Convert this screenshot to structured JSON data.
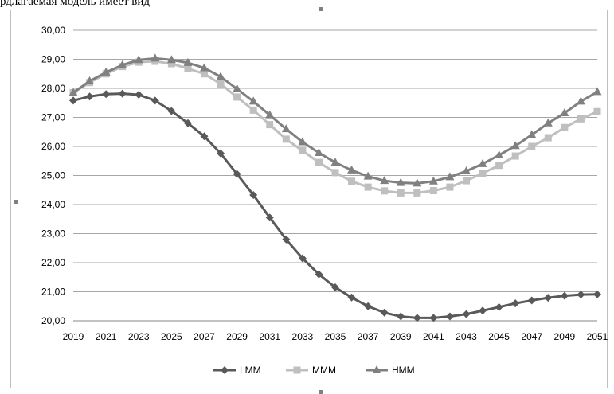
{
  "header_text": "рдлагаемая модель имеет вид",
  "chart_data": {
    "type": "line",
    "title": "",
    "xlabel": "",
    "ylabel": "",
    "ylim": [
      20,
      30
    ],
    "y_ticks": [
      "20,00",
      "21,00",
      "22,00",
      "23,00",
      "24,00",
      "25,00",
      "26,00",
      "27,00",
      "28,00",
      "29,00",
      "30,00"
    ],
    "x_ticks": [
      "2019",
      "2021",
      "2023",
      "2025",
      "2027",
      "2029",
      "2031",
      "2033",
      "2035",
      "2037",
      "2039",
      "2041",
      "2043",
      "2045",
      "2047",
      "2049",
      "2051"
    ],
    "x": [
      2019,
      2020,
      2021,
      2022,
      2023,
      2024,
      2025,
      2026,
      2027,
      2028,
      2029,
      2030,
      2031,
      2032,
      2033,
      2034,
      2035,
      2036,
      2037,
      2038,
      2039,
      2040,
      2041,
      2042,
      2043,
      2044,
      2045,
      2046,
      2047,
      2048,
      2049,
      2050,
      2051
    ],
    "grid": true,
    "legend_position": "bottom",
    "series": [
      {
        "name": "LMM",
        "color": "#595959",
        "marker": "diamond",
        "values": [
          27.58,
          27.72,
          27.8,
          27.82,
          27.78,
          27.58,
          27.22,
          26.8,
          26.35,
          25.76,
          25.05,
          24.33,
          23.55,
          22.8,
          22.15,
          21.6,
          21.15,
          20.8,
          20.5,
          20.28,
          20.15,
          20.1,
          20.1,
          20.15,
          20.23,
          20.35,
          20.47,
          20.6,
          20.7,
          20.79,
          20.86,
          20.9,
          20.91
        ]
      },
      {
        "name": "MMM",
        "color": "#bfbfbf",
        "marker": "square",
        "values": [
          27.85,
          28.2,
          28.5,
          28.75,
          28.9,
          28.93,
          28.85,
          28.68,
          28.5,
          28.15,
          27.7,
          27.25,
          26.75,
          26.25,
          25.85,
          25.45,
          25.1,
          24.8,
          24.6,
          24.47,
          24.4,
          24.4,
          24.48,
          24.6,
          24.82,
          25.08,
          25.35,
          25.67,
          26.0,
          26.3,
          26.65,
          26.95,
          27.2
        ]
      },
      {
        "name": "HMM",
        "color": "#808080",
        "marker": "triangle",
        "values": [
          27.85,
          28.25,
          28.55,
          28.8,
          28.98,
          29.03,
          28.98,
          28.88,
          28.7,
          28.4,
          27.98,
          27.55,
          27.08,
          26.6,
          26.15,
          25.78,
          25.45,
          25.18,
          24.97,
          24.82,
          24.75,
          24.73,
          24.8,
          24.95,
          25.15,
          25.4,
          25.7,
          26.02,
          26.4,
          26.8,
          27.15,
          27.55,
          27.88
        ]
      }
    ]
  }
}
